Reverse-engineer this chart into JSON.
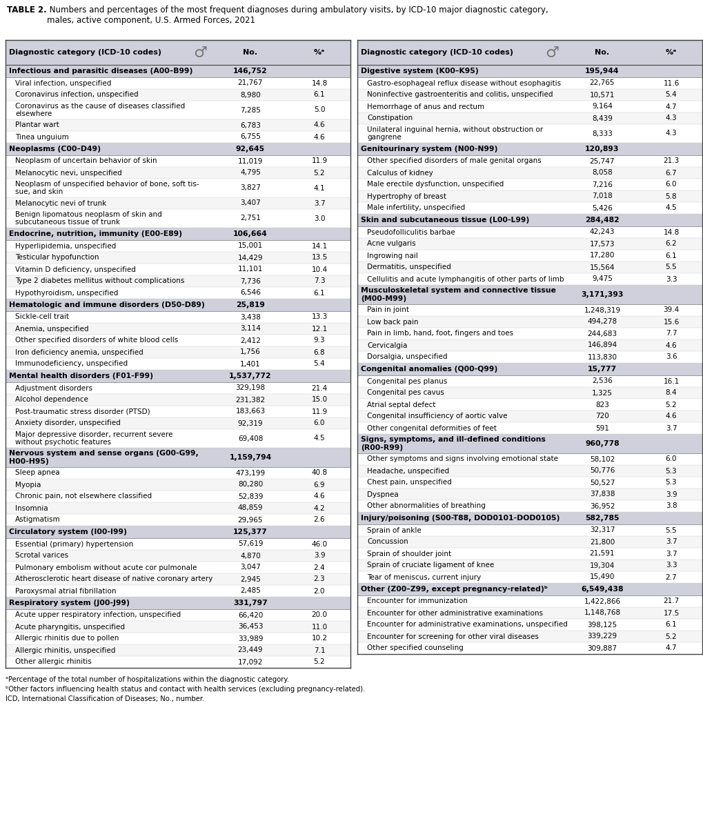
{
  "title_bold": "TABLE 2.",
  "title_rest": " Numbers and percentages of the most frequent diagnoses during ambulatory visits, by ICD-10 major diagnostic category,\nmales, active component, U.S. Armed Forces, 2021",
  "header_bg": "#d0d0dc",
  "category_bg": "#d0d0dc",
  "footnotes": [
    "ᵃPercentage of the total number of hospitalizations within the diagnostic category.",
    "ᵇOther factors influencing health status and contact with health services (excluding pregnancy-related).",
    "ICD, International Classification of Diseases; No., number."
  ],
  "left_col": {
    "header": "Diagnostic category (ICD-10 codes)",
    "sections": [
      {
        "category": "Infectious and parasitic diseases (A00–B99)",
        "total": "146,752",
        "rows": [
          [
            "Viral infection, unspecified",
            "21,767",
            "14.8"
          ],
          [
            "Coronavirus infection, unspecified",
            "8,980",
            "6.1"
          ],
          [
            "Coronavirus as the cause of diseases classified\nelsewhere",
            "7,285",
            "5.0"
          ],
          [
            "Plantar wart",
            "6,783",
            "4.6"
          ],
          [
            "Tinea unguium",
            "6,755",
            "4.6"
          ]
        ]
      },
      {
        "category": "Neoplasms (C00–D49)",
        "total": "92,645",
        "rows": [
          [
            "Neoplasm of uncertain behavior of skin",
            "11,019",
            "11.9"
          ],
          [
            "Melanocytic nevi, unspecified",
            "4,795",
            "5.2"
          ],
          [
            "Neoplasm of unspecified behavior of bone, soft tis-\nsue, and skin",
            "3,827",
            "4.1"
          ],
          [
            "Melanocytic nevi of trunk",
            "3,407",
            "3.7"
          ],
          [
            "Benign lipomatous neoplasm of skin and\nsubcutaneous tissue of trunk",
            "2,751",
            "3.0"
          ]
        ]
      },
      {
        "category": "Endocrine, nutrition, immunity (E00-E89)",
        "total": "106,664",
        "rows": [
          [
            "Hyperlipidemia, unspecified",
            "15,001",
            "14.1"
          ],
          [
            "Testicular hypofunction",
            "14,429",
            "13.5"
          ],
          [
            "Vitamin D deficiency, unspecified",
            "11,101",
            "10.4"
          ],
          [
            "Type 2 diabetes mellitus without complications",
            "7,736",
            "7.3"
          ],
          [
            "Hypothyroidism, unspecified",
            "6,546",
            "6.1"
          ]
        ]
      },
      {
        "category": "Hematologic and immune disorders (D50-D89)",
        "total": "25,819",
        "rows": [
          [
            "Sickle-cell trait",
            "3,438",
            "13.3"
          ],
          [
            "Anemia, unspecified",
            "3,114",
            "12.1"
          ],
          [
            "Other specified disorders of white blood cells",
            "2,412",
            "9.3"
          ],
          [
            "Iron deficiency anemia, unspecified",
            "1,756",
            "6.8"
          ],
          [
            "Immunodeficiency, unspecified",
            "1,401",
            "5.4"
          ]
        ]
      },
      {
        "category": "Mental health disorders (F01-F99)",
        "total": "1,537,772",
        "rows": [
          [
            "Adjustment disorders",
            "329,198",
            "21.4"
          ],
          [
            "Alcohol dependence",
            "231,382",
            "15.0"
          ],
          [
            "Post-traumatic stress disorder (PTSD)",
            "183,663",
            "11.9"
          ],
          [
            "Anxiety disorder, unspecified",
            "92,319",
            "6.0"
          ],
          [
            "Major depressive disorder, recurrent severe\nwithout psychotic features",
            "69,408",
            "4.5"
          ]
        ]
      },
      {
        "category": "Nervous system and sense organs (G00-G99,\nH00-H95)",
        "total": "1,159,794",
        "rows": [
          [
            "Sleep apnea",
            "473,199",
            "40.8"
          ],
          [
            "Myopia",
            "80,280",
            "6.9"
          ],
          [
            "Chronic pain, not elsewhere classified",
            "52,839",
            "4.6"
          ],
          [
            "Insomnia",
            "48,859",
            "4.2"
          ],
          [
            "Astigmatism",
            "29,965",
            "2.6"
          ]
        ]
      },
      {
        "category": "Circulatory system (I00-I99)",
        "total": "125,377",
        "rows": [
          [
            "Essential (primary) hypertension",
            "57,619",
            "46.0"
          ],
          [
            "Scrotal varices",
            "4,870",
            "3.9"
          ],
          [
            "Pulmonary embolism without acute cor pulmonale",
            "3,047",
            "2.4"
          ],
          [
            "Atherosclerotic heart disease of native coronary artery",
            "2,945",
            "2.3"
          ],
          [
            "Paroxysmal atrial fibrillation",
            "2,485",
            "2.0"
          ]
        ]
      },
      {
        "category": "Respiratory system (J00-J99)",
        "total": "331,797",
        "rows": [
          [
            "Acute upper respiratory infection, unspecified",
            "66,420",
            "20.0"
          ],
          [
            "Acute pharyngitis, unspecified",
            "36,453",
            "11.0"
          ],
          [
            "Allergic rhinitis due to pollen",
            "33,989",
            "10.2"
          ],
          [
            "Allergic rhinitis, unspecified",
            "23,449",
            "7.1"
          ],
          [
            "Other allergic rhinitis",
            "17,092",
            "5.2"
          ]
        ]
      }
    ]
  },
  "right_col": {
    "header": "Diagnostic category (ICD-10 codes)",
    "sections": [
      {
        "category": "Digestive system (K00–K95)",
        "total": "195,944",
        "rows": [
          [
            "Gastro-esophageal reflux disease without esophagitis",
            "22,765",
            "11.6"
          ],
          [
            "Noninfective gastroenteritis and colitis, unspecified",
            "10,571",
            "5.4"
          ],
          [
            "Hemorrhage of anus and rectum",
            "9,164",
            "4.7"
          ],
          [
            "Constipation",
            "8,439",
            "4.3"
          ],
          [
            "Unilateral inguinal hernia, without obstruction or\ngangrene",
            "8,333",
            "4.3"
          ]
        ]
      },
      {
        "category": "Genitourinary system (N00-N99)",
        "total": "120,893",
        "rows": [
          [
            "Other specified disorders of male genital organs",
            "25,747",
            "21.3"
          ],
          [
            "Calculus of kidney",
            "8,058",
            "6.7"
          ],
          [
            "Male erectile dysfunction, unspecified",
            "7,216",
            "6.0"
          ],
          [
            "Hypertrophy of breast",
            "7,018",
            "5.8"
          ],
          [
            "Male infertility, unspecified",
            "5,426",
            "4.5"
          ]
        ]
      },
      {
        "category": "Skin and subcutaneous tissue (L00-L99)",
        "total": "284,482",
        "rows": [
          [
            "Pseudofolliculitis barbae",
            "42,243",
            "14.8"
          ],
          [
            "Acne vulgaris",
            "17,573",
            "6.2"
          ],
          [
            "Ingrowing nail",
            "17,280",
            "6.1"
          ],
          [
            "Dermatitis, unspecified",
            "15,564",
            "5.5"
          ],
          [
            "Cellulitis and acute lymphangitis of other parts of limb",
            "9,475",
            "3.3"
          ]
        ]
      },
      {
        "category": "Musculoskeletal system and connective tissue\n(M00-M99)",
        "total": "3,171,393",
        "rows": [
          [
            "Pain in joint",
            "1,248,319",
            "39.4"
          ],
          [
            "Low back pain",
            "494,278",
            "15.6"
          ],
          [
            "Pain in limb, hand, foot, fingers and toes",
            "244,683",
            "7.7"
          ],
          [
            "Cervicalgia",
            "146,894",
            "4.6"
          ],
          [
            "Dorsalgia, unspecified",
            "113,830",
            "3.6"
          ]
        ]
      },
      {
        "category": "Congenital anomalies (Q00-Q99)",
        "total": "15,777",
        "rows": [
          [
            "Congenital pes planus",
            "2,536",
            "16.1"
          ],
          [
            "Congenital pes cavus",
            "1,325",
            "8.4"
          ],
          [
            "Atrial septal defect",
            "823",
            "5.2"
          ],
          [
            "Congenital insufficiency of aortic valve",
            "720",
            "4.6"
          ],
          [
            "Other congenital deformities of feet",
            "591",
            "3.7"
          ]
        ]
      },
      {
        "category": "Signs, symptoms, and ill-defined conditions\n(R00-R99)",
        "total": "960,778",
        "rows": [
          [
            "Other symptoms and signs involving emotional state",
            "58,102",
            "6.0"
          ],
          [
            "Headache, unspecified",
            "50,776",
            "5.3"
          ],
          [
            "Chest pain, unspecified",
            "50,527",
            "5.3"
          ],
          [
            "Dyspnea",
            "37,838",
            "3.9"
          ],
          [
            "Other abnormalities of breathing",
            "36,952",
            "3.8"
          ]
        ]
      },
      {
        "category": "Injury/poisoning (S00-T88, DOD0101-DOD0105)",
        "total": "582,785",
        "rows": [
          [
            "Sprain of ankle",
            "32,317",
            "5.5"
          ],
          [
            "Concussion",
            "21,800",
            "3.7"
          ],
          [
            "Sprain of shoulder joint",
            "21,591",
            "3.7"
          ],
          [
            "Sprain of cruciate ligament of knee",
            "19,304",
            "3.3"
          ],
          [
            "Tear of meniscus, current injury",
            "15,490",
            "2.7"
          ]
        ]
      },
      {
        "category": "Other (Z00–Z99, except pregnancy-related)ᵇ",
        "total": "6,549,438",
        "rows": [
          [
            "Encounter for immunization",
            "1,422,866",
            "21.7"
          ],
          [
            "Encounter for other administrative examinations",
            "1,148,768",
            "17.5"
          ],
          [
            "Encounter for administrative examinations, unspecified",
            "398,125",
            "6.1"
          ],
          [
            "Encounter for screening for other viral diseases",
            "339,229",
            "5.2"
          ],
          [
            "Other specified counseling",
            "309,887",
            "4.7"
          ]
        ]
      }
    ]
  }
}
